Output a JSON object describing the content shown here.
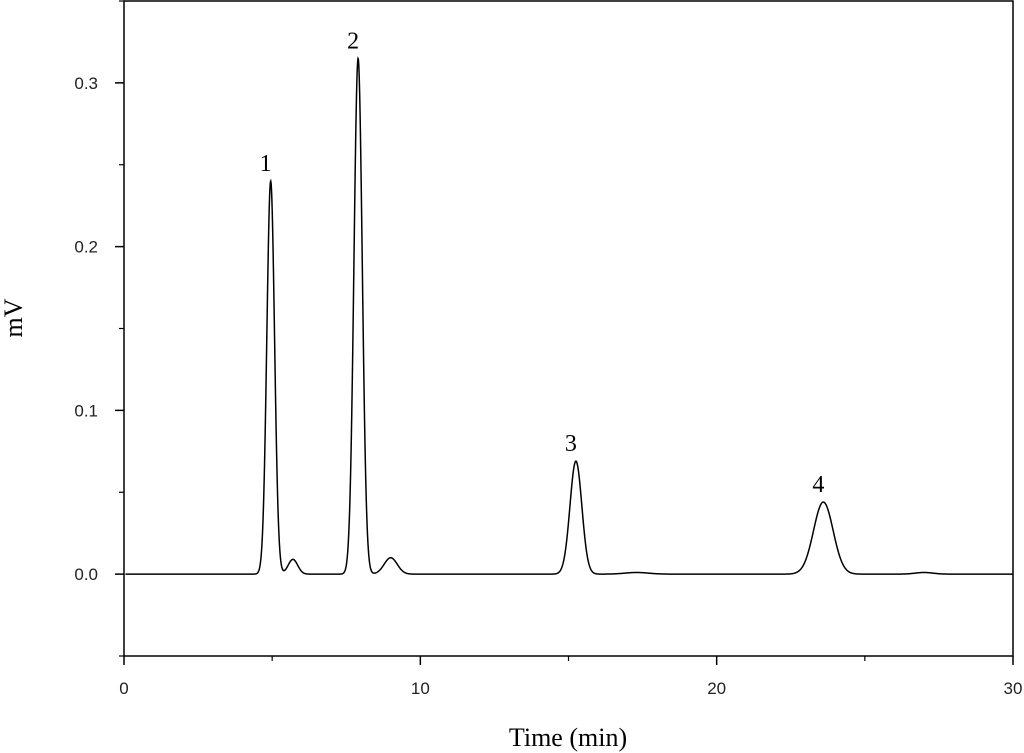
{
  "chart_data": {
    "type": "line",
    "title": "",
    "xlabel": "Time (min)",
    "ylabel": "mV",
    "xlim": [
      0,
      30
    ],
    "ylim": [
      -0.05,
      0.35
    ],
    "x_ticks": [
      0,
      10,
      20,
      30
    ],
    "x_tick_labels": [
      "0",
      "10",
      "20",
      "30"
    ],
    "y_ticks": [
      0.0,
      0.1,
      0.2,
      0.3
    ],
    "y_tick_labels": [
      "0.0",
      "0.1",
      "0.2",
      "0.3"
    ],
    "grid": false,
    "legend": "none",
    "line_color": "#000000",
    "baseline": 0.0,
    "peaks": [
      {
        "label": "1",
        "x": 4.95,
        "y": 0.24,
        "width": 0.13
      },
      {
        "label": "2",
        "x": 7.9,
        "y": 0.315,
        "width": 0.14
      },
      {
        "label": "3",
        "x": 15.25,
        "y": 0.069,
        "width": 0.2
      },
      {
        "label": "4",
        "x": 23.6,
        "y": 0.044,
        "width": 0.33
      }
    ],
    "minor_peaks": [
      {
        "x": 5.7,
        "y": 0.009,
        "width": 0.16
      },
      {
        "x": 9.0,
        "y": 0.01,
        "width": 0.22
      },
      {
        "x": 17.3,
        "y": 0.001,
        "width": 0.4
      },
      {
        "x": 27.0,
        "y": 0.001,
        "width": 0.3
      }
    ]
  }
}
